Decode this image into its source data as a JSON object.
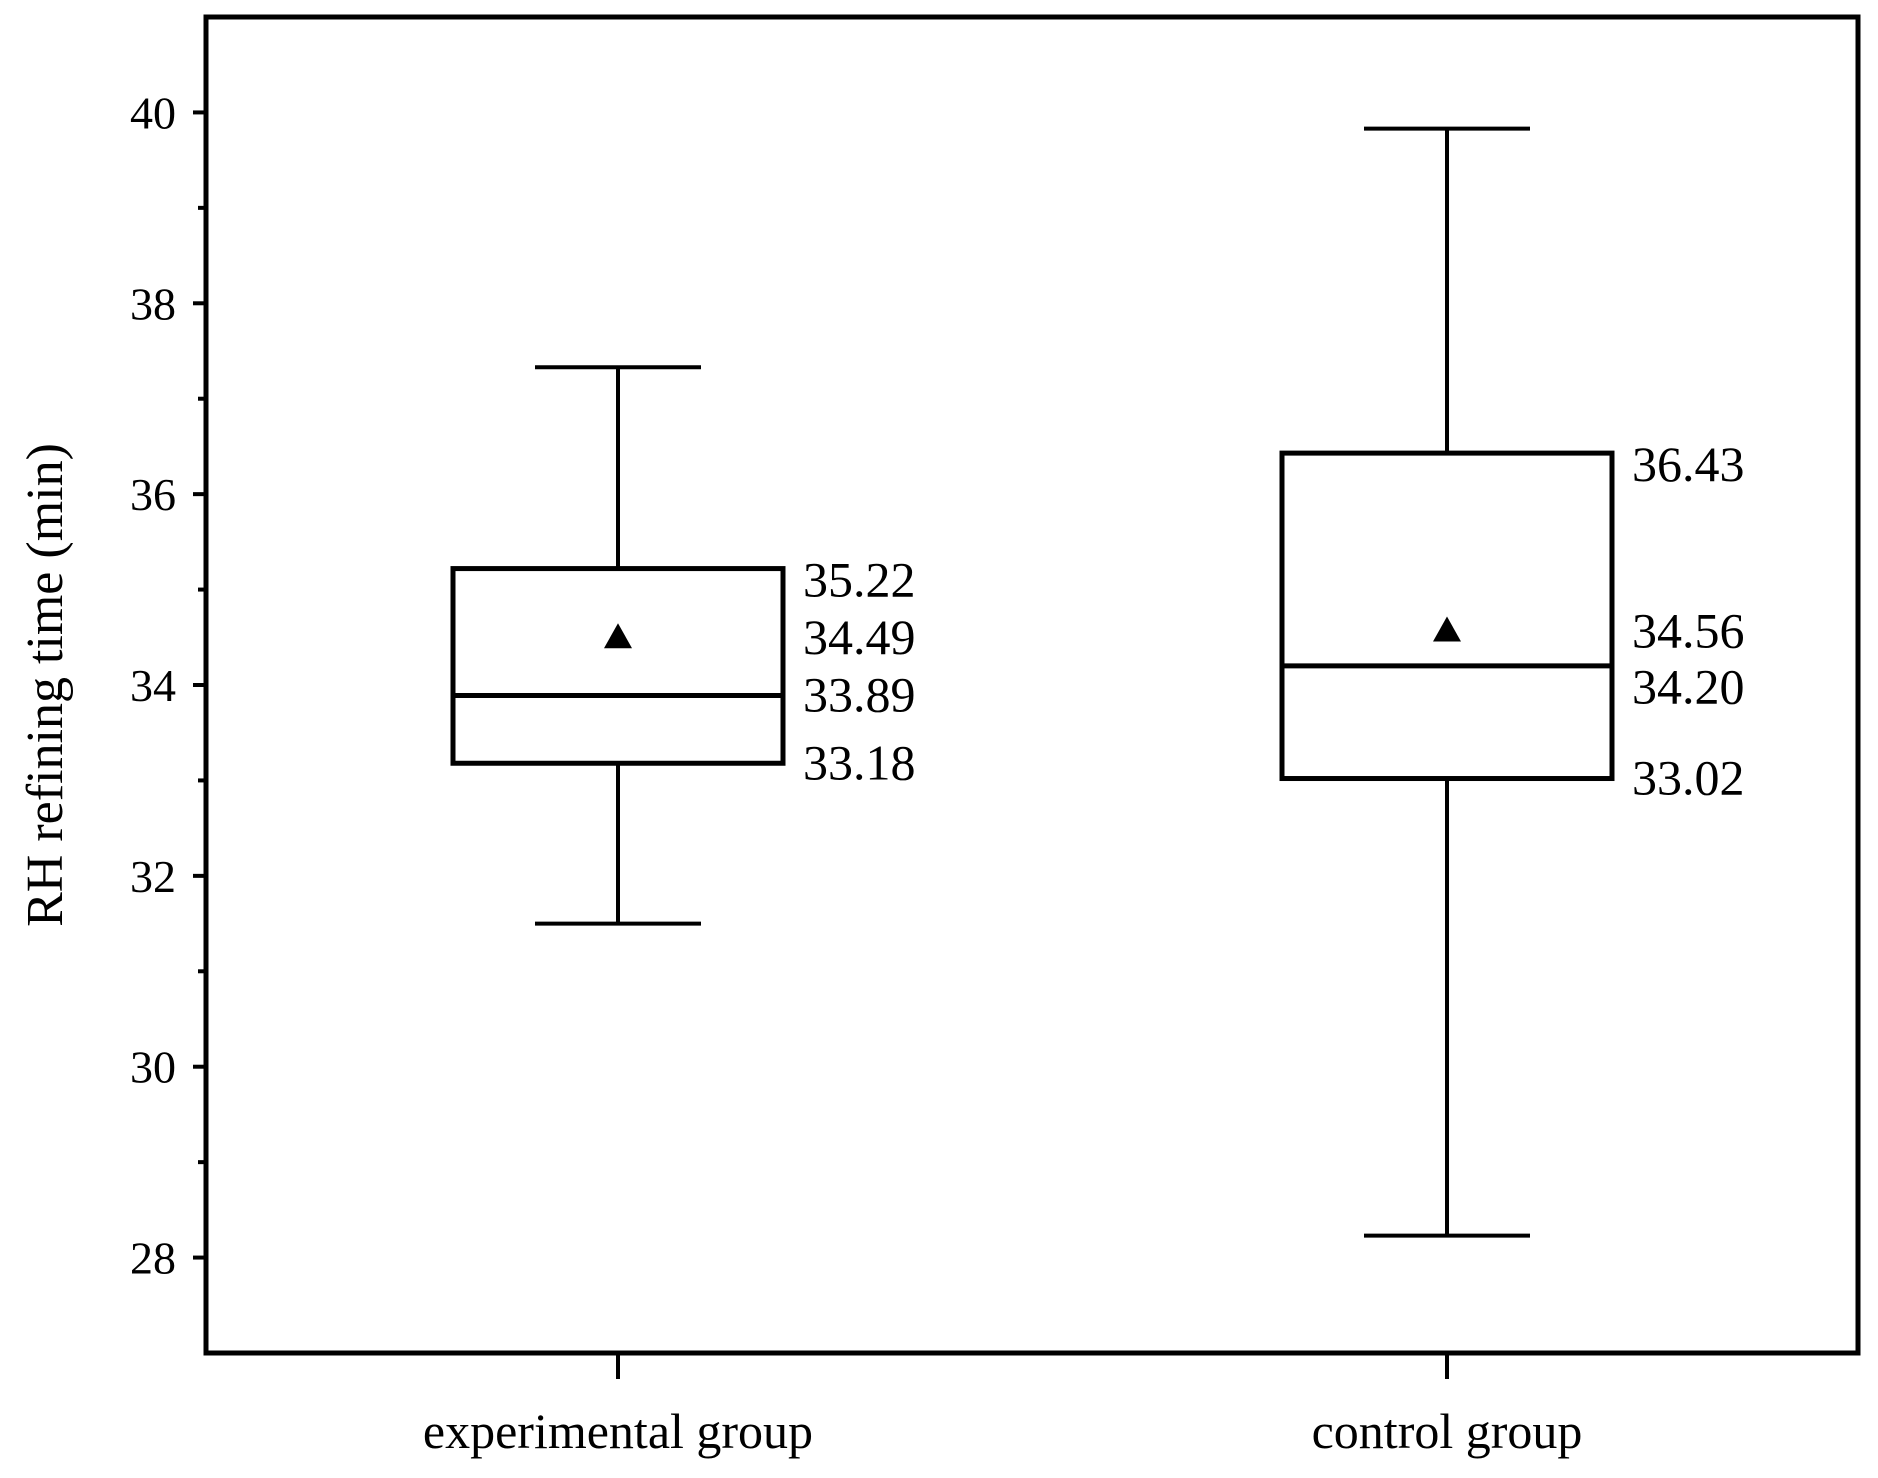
{
  "chart_data": {
    "type": "box",
    "ylabel": "RH refining time (min)",
    "xlabel": "",
    "ylim": [
      27,
      41
    ],
    "yticks": [
      28,
      30,
      32,
      34,
      36,
      38,
      40
    ],
    "ytick_labels": [
      "28",
      "30",
      "32",
      "34",
      "36",
      "38",
      "40"
    ],
    "minor_yticks": [
      29,
      31,
      33,
      35,
      37,
      39
    ],
    "grid": false,
    "categories": [
      "experimental group",
      "control group"
    ],
    "boxes": [
      {
        "category": "experimental group",
        "min": 31.5,
        "q1": 33.18,
        "median": 33.89,
        "mean": 34.49,
        "q3": 35.22,
        "max": 37.33,
        "labels": {
          "q3": "35.22",
          "mean": "34.49",
          "median": "33.89",
          "q1": "33.18"
        }
      },
      {
        "category": "control group",
        "min": 28.23,
        "q1": 33.02,
        "median": 34.2,
        "mean": 34.56,
        "q3": 36.43,
        "max": 39.83,
        "labels": {
          "q3": "36.43",
          "mean": "34.56",
          "median": "34.20",
          "q1": "33.02"
        }
      }
    ],
    "colors": {
      "line": "#000000",
      "background": "#ffffff"
    }
  }
}
